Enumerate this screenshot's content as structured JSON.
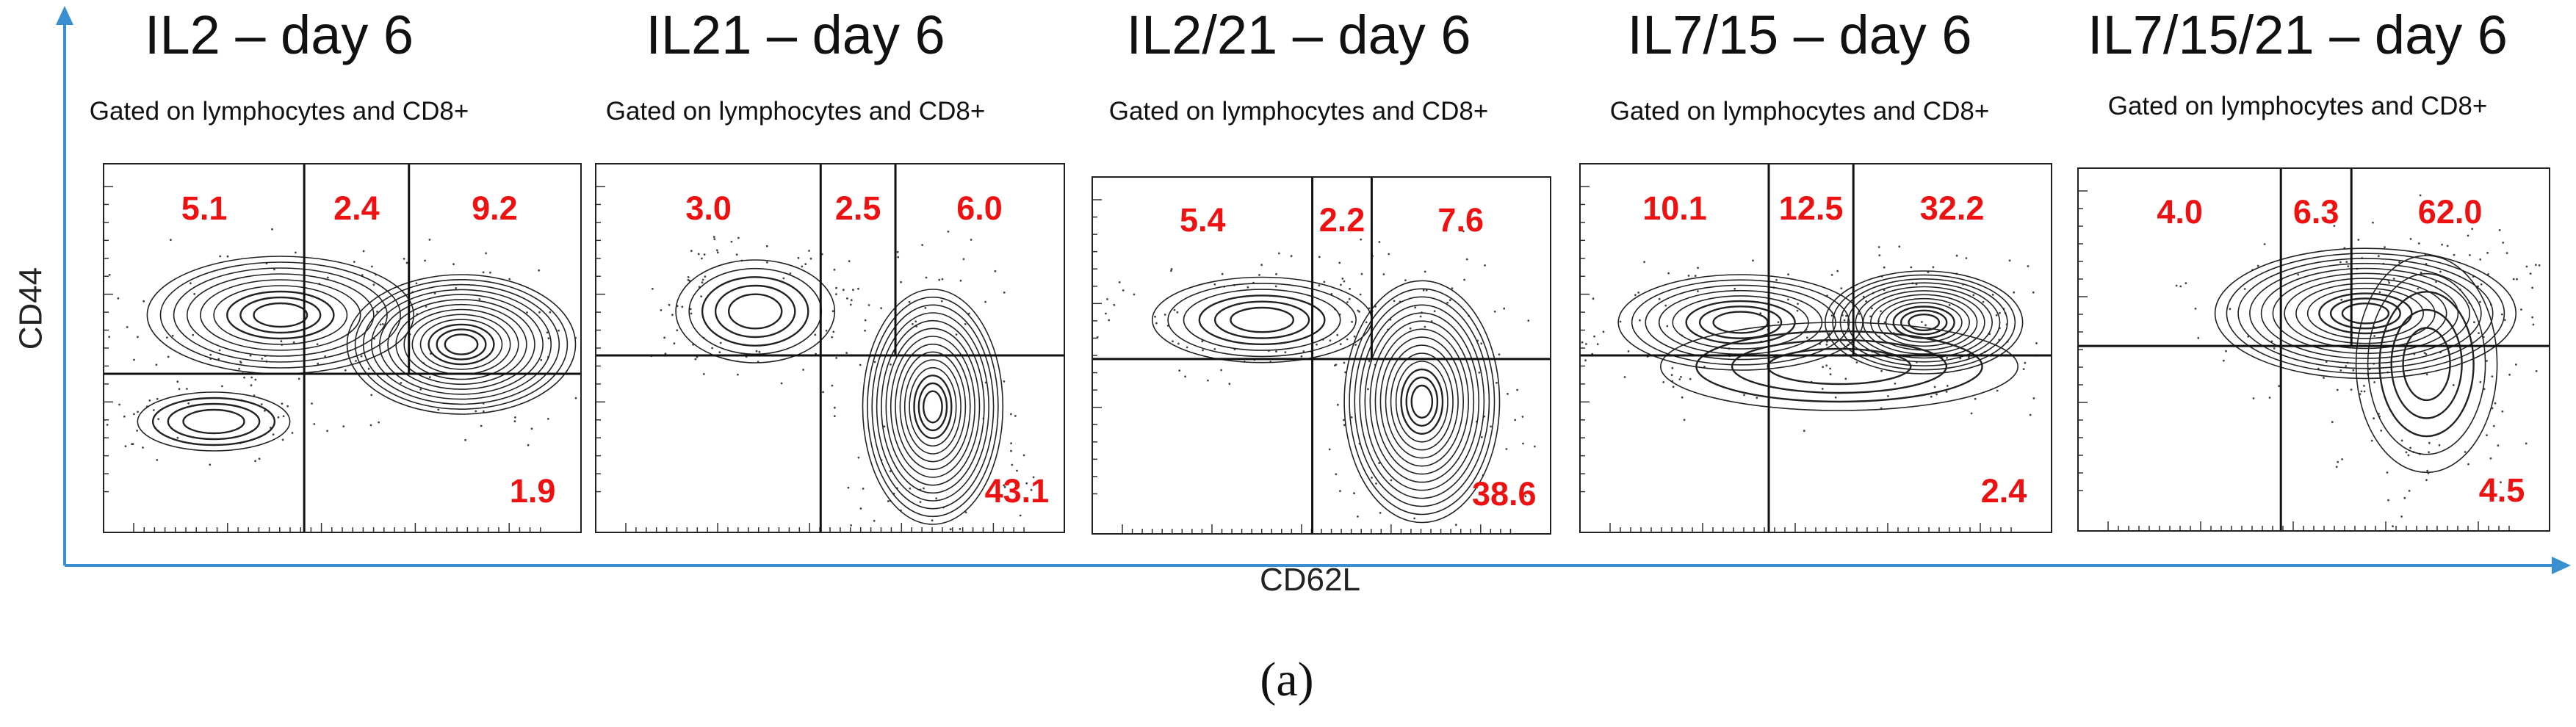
{
  "chart_data": [
    {
      "type": "scatter",
      "title": "IL2 – day 6",
      "subtitle": "Gated on lymphocytes and CD8+",
      "xlabel": "CD62L",
      "ylabel": "CD44",
      "quadrants": {
        "upper_left": "5.1",
        "upper_middle": "2.4",
        "upper_right": "9.2",
        "lower_right": "1.9"
      }
    },
    {
      "type": "scatter",
      "title": "IL21 – day 6",
      "subtitle": "Gated on lymphocytes and CD8+",
      "xlabel": "CD62L",
      "ylabel": "CD44",
      "quadrants": {
        "upper_left": "3.0",
        "upper_middle": "2.5",
        "upper_right": "6.0",
        "lower_right": "43.1"
      }
    },
    {
      "type": "scatter",
      "title": "IL2/21 – day 6",
      "subtitle": "Gated on lymphocytes and CD8+",
      "xlabel": "CD62L",
      "ylabel": "CD44",
      "quadrants": {
        "upper_left": "5.4",
        "upper_middle": "2.2",
        "upper_right": "7.6",
        "lower_right": "38.6"
      }
    },
    {
      "type": "scatter",
      "title": "IL7/15 – day 6",
      "subtitle": "Gated on lymphocytes and CD8+",
      "xlabel": "CD62L",
      "ylabel": "CD44",
      "quadrants": {
        "upper_left": "10.1",
        "upper_middle": "12.5",
        "upper_right": "32.2",
        "lower_right": "2.4"
      }
    },
    {
      "type": "scatter",
      "title": "IL7/15/21 – day 6",
      "subtitle": "Gated on lymphocytes and CD8+",
      "xlabel": "CD62L",
      "ylabel": "CD44",
      "quadrants": {
        "upper_left": "4.0",
        "upper_middle": "6.3",
        "upper_right": "62.0",
        "lower_right": "4.5"
      }
    }
  ],
  "axes": {
    "y_label": "CD44",
    "x_label": "CD62L",
    "color": "#3a8fd0"
  },
  "figure_label": "(a)",
  "colors": {
    "quadrant_values": "#ee1111",
    "contours": "#222222"
  }
}
